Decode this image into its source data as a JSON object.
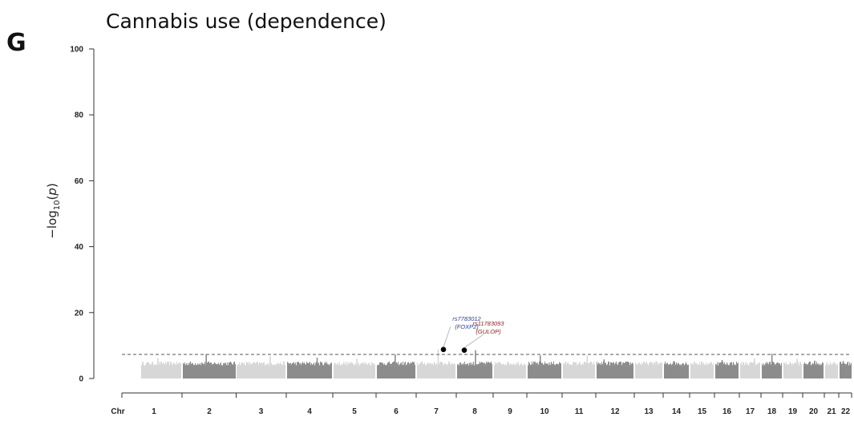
{
  "panel_letter": "G",
  "chart_data": {
    "type": "scatter",
    "subtype": "manhattan",
    "title": "Cannabis use (dependence)",
    "ylabel_prefix": "−log",
    "ylabel_sub": "10",
    "ylabel_var": "p",
    "xlabel": "Chr",
    "ylim": [
      0,
      100
    ],
    "yticks": [
      0,
      20,
      40,
      60,
      80,
      100
    ],
    "grid": false,
    "significance_threshold": 7.3,
    "colors": {
      "light": "#d7d7d7",
      "dark": "#8c8c8c",
      "threshold": "#555555",
      "axis": "#333333",
      "lead": "#000000"
    },
    "chromosomes": [
      {
        "label": "1",
        "peak": 6.2
      },
      {
        "label": "2",
        "peak": 7.4
      },
      {
        "label": "3",
        "peak": 6.8
      },
      {
        "label": "4",
        "peak": 6.3
      },
      {
        "label": "5",
        "peak": 6.0
      },
      {
        "label": "6",
        "peak": 7.3
      },
      {
        "label": "7",
        "peak": 8.8
      },
      {
        "label": "8",
        "peak": 8.6
      },
      {
        "label": "9",
        "peak": 5.0
      },
      {
        "label": "10",
        "peak": 7.0
      },
      {
        "label": "11",
        "peak": 6.9
      },
      {
        "label": "12",
        "peak": 5.8
      },
      {
        "label": "13",
        "peak": 5.2
      },
      {
        "label": "14",
        "peak": 5.3
      },
      {
        "label": "15",
        "peak": 5.0
      },
      {
        "label": "16",
        "peak": 5.6
      },
      {
        "label": "17",
        "peak": 6.1
      },
      {
        "label": "18",
        "peak": 7.5
      },
      {
        "label": "19",
        "peak": 6.1
      },
      {
        "label": "20",
        "peak": 5.4
      },
      {
        "label": "21",
        "peak": 5.0
      },
      {
        "label": "22",
        "peak": 5.3
      }
    ],
    "lead_snps": [
      {
        "rsid": "rs7783012",
        "gene": "(FOXP2)",
        "chr": "7",
        "y": 8.8,
        "color": "#2f3d8f"
      },
      {
        "rsid": "rs11783093",
        "gene": "(GULOP)",
        "chr": "8",
        "y": 8.6,
        "color": "#8a2020"
      }
    ]
  }
}
